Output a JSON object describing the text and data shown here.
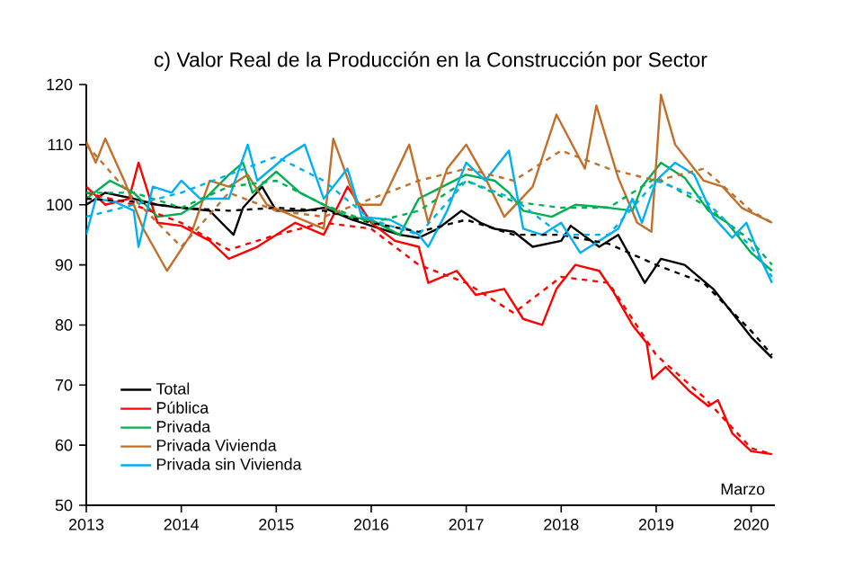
{
  "chart_data": {
    "type": "line",
    "title": "c) Valor Real de la Producción en la Construcción por Sector",
    "xlim": [
      2013,
      2020.25
    ],
    "xticks": [
      2013,
      2014,
      2015,
      2016,
      2017,
      2018,
      2019,
      2020
    ],
    "ylim": [
      50,
      120
    ],
    "yticks": [
      50,
      60,
      70,
      80,
      90,
      100,
      110,
      120
    ],
    "grid": false,
    "legend": "bottom left",
    "annotations": [
      "Marzo"
    ],
    "series": [
      {
        "name": "Total",
        "color": "#000000",
        "line_style": "solid",
        "x": [
          2013,
          2013.2,
          2013.5,
          2013.75,
          2014,
          2014.3,
          2014.55,
          2014.65,
          2014.85,
          2015,
          2015.3,
          2015.5,
          2015.8,
          2016,
          2016.3,
          2016.5,
          2016.7,
          2016.95,
          2017.15,
          2017.3,
          2017.5,
          2017.7,
          2018,
          2018.1,
          2018.4,
          2018.6,
          2018.88,
          2019.05,
          2019.3,
          2019.6,
          2019.8,
          2020,
          2020.22
        ],
        "values": [
          100,
          102,
          101,
          100,
          99.5,
          99,
          95,
          99.5,
          103,
          99,
          99,
          99.5,
          97.5,
          96.5,
          95,
          94.5,
          96,
          99,
          97,
          96,
          95.5,
          93,
          94,
          96.5,
          93,
          95,
          87,
          91,
          90,
          86,
          82,
          78,
          74.5
        ]
      },
      {
        "name": "Pública",
        "color": "#ff0000",
        "line_style": "solid",
        "x": [
          2013,
          2013.2,
          2013.45,
          2013.55,
          2013.75,
          2014,
          2014.3,
          2014.5,
          2014.8,
          2015,
          2015.2,
          2015.5,
          2015.75,
          2016,
          2016.25,
          2016.5,
          2016.6,
          2016.9,
          2017.1,
          2017.4,
          2017.6,
          2017.8,
          2017.95,
          2018.15,
          2018.4,
          2018.55,
          2018.75,
          2018.9,
          2018.96,
          2019.1,
          2019.35,
          2019.55,
          2019.65,
          2019.8,
          2020,
          2020.22
        ],
        "values": [
          103,
          100,
          101,
          107,
          97,
          96.5,
          94,
          91,
          93,
          95,
          97,
          95,
          103,
          97,
          94,
          93,
          87,
          89,
          85,
          86,
          81,
          80,
          86,
          90,
          89,
          85.5,
          80,
          77,
          71,
          73,
          69,
          66.5,
          67.5,
          62,
          59,
          58.5
        ]
      },
      {
        "name": "Privada",
        "color": "#00b050",
        "line_style": "solid",
        "x": [
          2013,
          2013.25,
          2013.5,
          2013.75,
          2014,
          2014.25,
          2014.5,
          2014.65,
          2014.75,
          2015,
          2015.25,
          2015.5,
          2015.75,
          2016,
          2016.3,
          2016.5,
          2016.75,
          2017,
          2017.3,
          2017.45,
          2017.6,
          2017.9,
          2018.15,
          2018.5,
          2018.75,
          2018.85,
          2019.05,
          2019.3,
          2019.55,
          2019.75,
          2020,
          2020.22
        ],
        "values": [
          101,
          104,
          102,
          98,
          98.5,
          101,
          105,
          107,
          102,
          105.5,
          102,
          100,
          98,
          97.5,
          95,
          101,
          103,
          105,
          104,
          102,
          99,
          98,
          100,
          99.5,
          99,
          103,
          107,
          104.5,
          99,
          97,
          92,
          89
        ]
      },
      {
        "name": "Privada Vivienda",
        "color": "#c0702a",
        "line_style": "solid",
        "x": [
          2013,
          2013.1,
          2013.2,
          2013.4,
          2013.6,
          2013.85,
          2014.1,
          2014.3,
          2014.5,
          2014.7,
          2014.9,
          2015.2,
          2015.5,
          2015.6,
          2015.85,
          2016.1,
          2016.4,
          2016.6,
          2016.8,
          2017,
          2017.2,
          2017.4,
          2017.7,
          2017.95,
          2018.05,
          2018.25,
          2018.37,
          2018.6,
          2018.8,
          2018.95,
          2019.05,
          2019.2,
          2019.5,
          2019.7,
          2019.9,
          2020.22
        ],
        "values": [
          110.5,
          107,
          111,
          104,
          96,
          89,
          95,
          104,
          103,
          105,
          100,
          98,
          96,
          111,
          100,
          100,
          110,
          97,
          106,
          110,
          104.5,
          98,
          103,
          115,
          112,
          106,
          116.5,
          104.5,
          97,
          95.5,
          118.3,
          110,
          104,
          103,
          99.5,
          97
        ]
      },
      {
        "name": "Privada sin Vivienda",
        "color": "#00b0f0",
        "line_style": "solid",
        "x": [
          2013,
          2013.1,
          2013.3,
          2013.5,
          2013.55,
          2013.7,
          2013.9,
          2014,
          2014.2,
          2014.5,
          2014.7,
          2014.8,
          2015.1,
          2015.3,
          2015.5,
          2015.75,
          2015.9,
          2016.2,
          2016.5,
          2016.6,
          2016.8,
          2017,
          2017.2,
          2017.45,
          2017.6,
          2017.8,
          2018,
          2018.2,
          2018.6,
          2018.75,
          2018.85,
          2019,
          2019.2,
          2019.4,
          2019.6,
          2019.8,
          2019.95,
          2020.1,
          2020.22
        ],
        "values": [
          95,
          101,
          100.5,
          99,
          93,
          103,
          102,
          104,
          101,
          101,
          110,
          104,
          108,
          110,
          101,
          106,
          98,
          97.5,
          95,
          93,
          99,
          107,
          104,
          109,
          96,
          95,
          97,
          92,
          96,
          101,
          97,
          104,
          107,
          105,
          98,
          94.5,
          97,
          91,
          87
        ]
      },
      {
        "color": "#000000",
        "line_style": "dashed",
        "x": [
          2013,
          2013.5,
          2014,
          2014.5,
          2015,
          2015.5,
          2016,
          2016.5,
          2017,
          2017.5,
          2018,
          2018.5,
          2019,
          2019.5,
          2020,
          2020.22
        ],
        "values": [
          101,
          100.5,
          99.5,
          99,
          99.5,
          99,
          97,
          95.5,
          97.5,
          95,
          95,
          93.5,
          90,
          87,
          79,
          75
        ]
      },
      {
        "color": "#ff0000",
        "line_style": "dashed",
        "x": [
          2013,
          2013.5,
          2014,
          2014.5,
          2015,
          2015.5,
          2016,
          2016.5,
          2017,
          2017.5,
          2018,
          2018.5,
          2019,
          2019.5,
          2020,
          2020.22
        ],
        "values": [
          102,
          100,
          97,
          92.5,
          95,
          97,
          96,
          90,
          87,
          82,
          88,
          87,
          75,
          68,
          59.5,
          58.5
        ]
      },
      {
        "color": "#00b050",
        "line_style": "dashed",
        "x": [
          2013,
          2013.5,
          2014,
          2014.5,
          2015,
          2015.5,
          2016,
          2016.5,
          2017,
          2017.5,
          2018,
          2018.5,
          2019,
          2019.5,
          2020,
          2020.22
        ],
        "values": [
          102,
          102,
          99.5,
          103,
          104,
          100,
          97,
          99,
          104,
          100.5,
          99.5,
          99.5,
          104.5,
          100,
          94,
          90
        ]
      },
      {
        "color": "#c0702a",
        "line_style": "dashed",
        "x": [
          2013,
          2013.5,
          2014,
          2014.5,
          2015,
          2015.5,
          2016,
          2016.5,
          2017,
          2017.5,
          2018,
          2018.5,
          2019,
          2019.5,
          2020,
          2020.22
        ],
        "values": [
          110,
          101,
          93,
          102,
          99,
          98,
          101,
          104,
          106,
          104,
          109,
          106,
          104,
          106,
          99,
          97
        ]
      },
      {
        "color": "#00b0f0",
        "line_style": "dashed",
        "x": [
          2013,
          2013.5,
          2014,
          2014.5,
          2015,
          2015.5,
          2016,
          2016.5,
          2017,
          2017.5,
          2018,
          2018.5,
          2019,
          2019.5,
          2020,
          2020.22
        ],
        "values": [
          98,
          100,
          102,
          105,
          108,
          104,
          97.5,
          95,
          104,
          101,
          95,
          95,
          104,
          101,
          93,
          88
        ]
      }
    ]
  }
}
